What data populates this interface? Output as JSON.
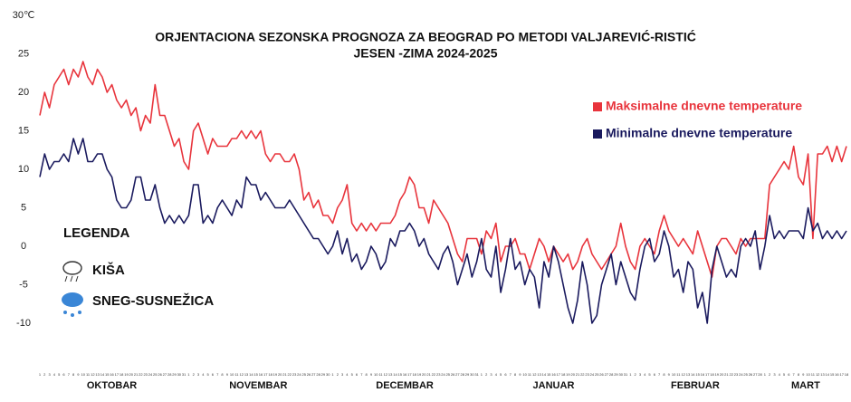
{
  "chart_data": {
    "type": "line",
    "title": "ORJENTACIONA  SEZONSKA PROGNOZA ZA BEOGRAD PO METODI VALJAREVIĆ-RISTIĆ",
    "subtitle": "JESEN -ZIMA 2024-2025",
    "categories": [
      "1",
      "2",
      "3",
      "4",
      "5",
      "6",
      "7",
      "8",
      "9",
      "10",
      "11",
      "12",
      "13",
      "14",
      "15",
      "16",
      "17",
      "18",
      "19",
      "20",
      "21",
      "22",
      "23",
      "24",
      "25",
      "26",
      "27",
      "28",
      "29",
      "30",
      "31",
      "1",
      "2",
      "3",
      "4",
      "5",
      "6",
      "7",
      "8",
      "9",
      "10",
      "11",
      "12",
      "13",
      "14",
      "15",
      "16",
      "17",
      "18",
      "19",
      "20",
      "21",
      "22",
      "23",
      "24",
      "25",
      "26",
      "27",
      "28",
      "29",
      "30",
      "1",
      "2",
      "3",
      "4",
      "5",
      "6",
      "7",
      "8",
      "9",
      "10",
      "11",
      "12",
      "13",
      "14",
      "15",
      "16",
      "17",
      "18",
      "19",
      "20",
      "21",
      "22",
      "23",
      "24",
      "25",
      "26",
      "27",
      "28",
      "29",
      "30",
      "31",
      "1",
      "2",
      "3",
      "4",
      "5",
      "6",
      "7",
      "8",
      "9",
      "10",
      "11",
      "12",
      "13",
      "14",
      "15",
      "16",
      "17",
      "18",
      "19",
      "20",
      "21",
      "22",
      "23",
      "24",
      "25",
      "26",
      "27",
      "28",
      "29",
      "30",
      "31",
      "1",
      "2",
      "3",
      "4",
      "5",
      "6",
      "7",
      "8",
      "9",
      "10",
      "11",
      "12",
      "13",
      "14",
      "15",
      "16",
      "17",
      "18",
      "19",
      "20",
      "21",
      "22",
      "23",
      "24",
      "25",
      "26",
      "27",
      "28",
      "1",
      "2",
      "3",
      "4",
      "5",
      "6",
      "7",
      "8",
      "9",
      "10",
      "11",
      "12",
      "13",
      "14",
      "15",
      "16",
      "17",
      "18"
    ],
    "month_labels": [
      "OKTOBAR",
      "NOVEMBAR",
      "DECEMBAR",
      "JANUAR",
      "FEBRUAR",
      "MART"
    ],
    "series": [
      {
        "name": "Maksimalne dnevne temperature",
        "color": "#e8343c",
        "values": [
          17,
          20,
          18,
          21,
          22,
          23,
          21,
          23,
          22,
          24,
          22,
          21,
          23,
          22,
          20,
          21,
          19,
          18,
          19,
          17,
          18,
          15,
          17,
          16,
          21,
          17,
          17,
          15,
          13,
          14,
          11,
          10,
          15,
          16,
          14,
          12,
          14,
          13,
          13,
          13,
          14,
          14,
          15,
          14,
          15,
          14,
          15,
          12,
          11,
          12,
          12,
          11,
          11,
          12,
          10,
          6,
          7,
          5,
          6,
          4,
          4,
          3,
          5,
          6,
          8,
          3,
          2,
          3,
          2,
          3,
          2,
          3,
          3,
          3,
          4,
          6,
          7,
          9,
          8,
          5,
          5,
          3,
          6,
          5,
          4,
          3,
          1,
          -1,
          -2,
          1,
          1,
          1,
          -1,
          2,
          1,
          3,
          -2,
          0,
          0,
          1,
          -1,
          -1,
          -3,
          -1,
          1,
          0,
          -2,
          0,
          -1,
          -2,
          -1,
          -3,
          -2,
          0,
          1,
          -1,
          -2,
          -3,
          -2,
          -1,
          0,
          3,
          0,
          -2,
          -3,
          0,
          1,
          0,
          -1,
          2,
          4,
          2,
          1,
          0,
          1,
          0,
          -1,
          2,
          0,
          -2,
          -4,
          0,
          1,
          1,
          0,
          -1,
          1,
          0,
          1,
          1,
          1,
          1,
          8,
          9,
          10,
          11,
          10,
          13,
          9,
          8,
          12,
          1,
          12,
          12,
          13,
          11,
          13,
          11,
          13
        ]
      },
      {
        "name": "Minimalne dnevne temperature",
        "color": "#1a1a5e",
        "values": [
          9,
          12,
          10,
          11,
          11,
          12,
          11,
          14,
          12,
          14,
          11,
          11,
          12,
          12,
          10,
          9,
          6,
          5,
          5,
          6,
          9,
          9,
          6,
          6,
          8,
          5,
          3,
          4,
          3,
          4,
          3,
          4,
          8,
          8,
          3,
          4,
          3,
          5,
          6,
          5,
          4,
          6,
          5,
          9,
          8,
          8,
          6,
          7,
          6,
          5,
          5,
          5,
          6,
          5,
          4,
          3,
          2,
          1,
          1,
          0,
          -1,
          0,
          2,
          -1,
          1,
          -2,
          -1,
          -3,
          -2,
          0,
          -1,
          -3,
          -2,
          1,
          0,
          2,
          2,
          3,
          2,
          0,
          1,
          -1,
          -2,
          -3,
          -1,
          0,
          -2,
          -5,
          -3,
          -1,
          -4,
          -2,
          1,
          -3,
          -4,
          0,
          -6,
          -3,
          1,
          -3,
          -2,
          -5,
          -3,
          -4,
          -8,
          -2,
          -4,
          0,
          -2,
          -5,
          -8,
          -10,
          -7,
          -2,
          -5,
          -10,
          -9,
          -5,
          -3,
          -1,
          -5,
          -2,
          -4,
          -6,
          -7,
          -3,
          0,
          1,
          -2,
          -1,
          2,
          0,
          -4,
          -3,
          -6,
          -2,
          -3,
          -8,
          -6,
          -10,
          -3,
          0,
          -2,
          -4,
          -3,
          -4,
          0,
          1,
          0,
          2,
          -3,
          0,
          4,
          1,
          2,
          1,
          2,
          2,
          2,
          1,
          5,
          2,
          3,
          1,
          2,
          1,
          2,
          1,
          2
        ]
      }
    ],
    "ylim": [
      -14,
      30
    ],
    "yticks": [
      -10,
      -5,
      0,
      5,
      10,
      15,
      20,
      25,
      {
        "value": 30,
        "label": "30℃"
      }
    ],
    "grid": false,
    "legend_title": "LEGENDA",
    "legend_items": [
      "KIŠA",
      "SNEG-SUSNEŽICA"
    ]
  }
}
